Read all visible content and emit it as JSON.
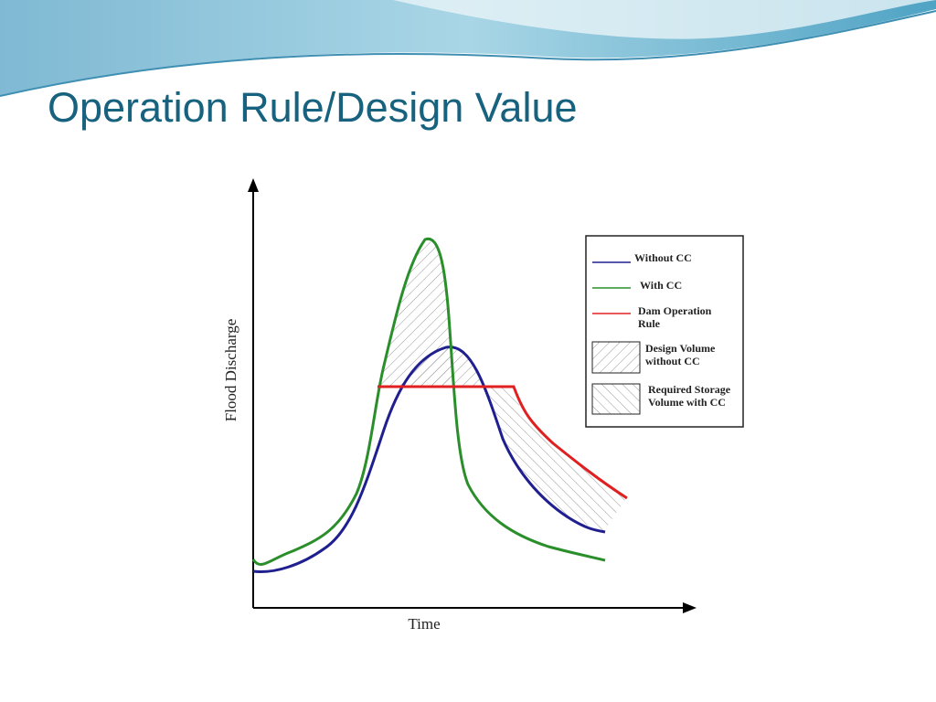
{
  "slide": {
    "title": "Operation Rule/Design Value"
  },
  "diagram": {
    "y_axis_label": "Flood Discharge",
    "x_axis_label": "Time",
    "legend": [
      {
        "label": "Without CC"
      },
      {
        "label": "With CC"
      },
      {
        "label": "Dam Operation Rule"
      },
      {
        "label": "Design Volume without CC"
      },
      {
        "label": "Required Storage Volume with CC"
      }
    ]
  }
}
